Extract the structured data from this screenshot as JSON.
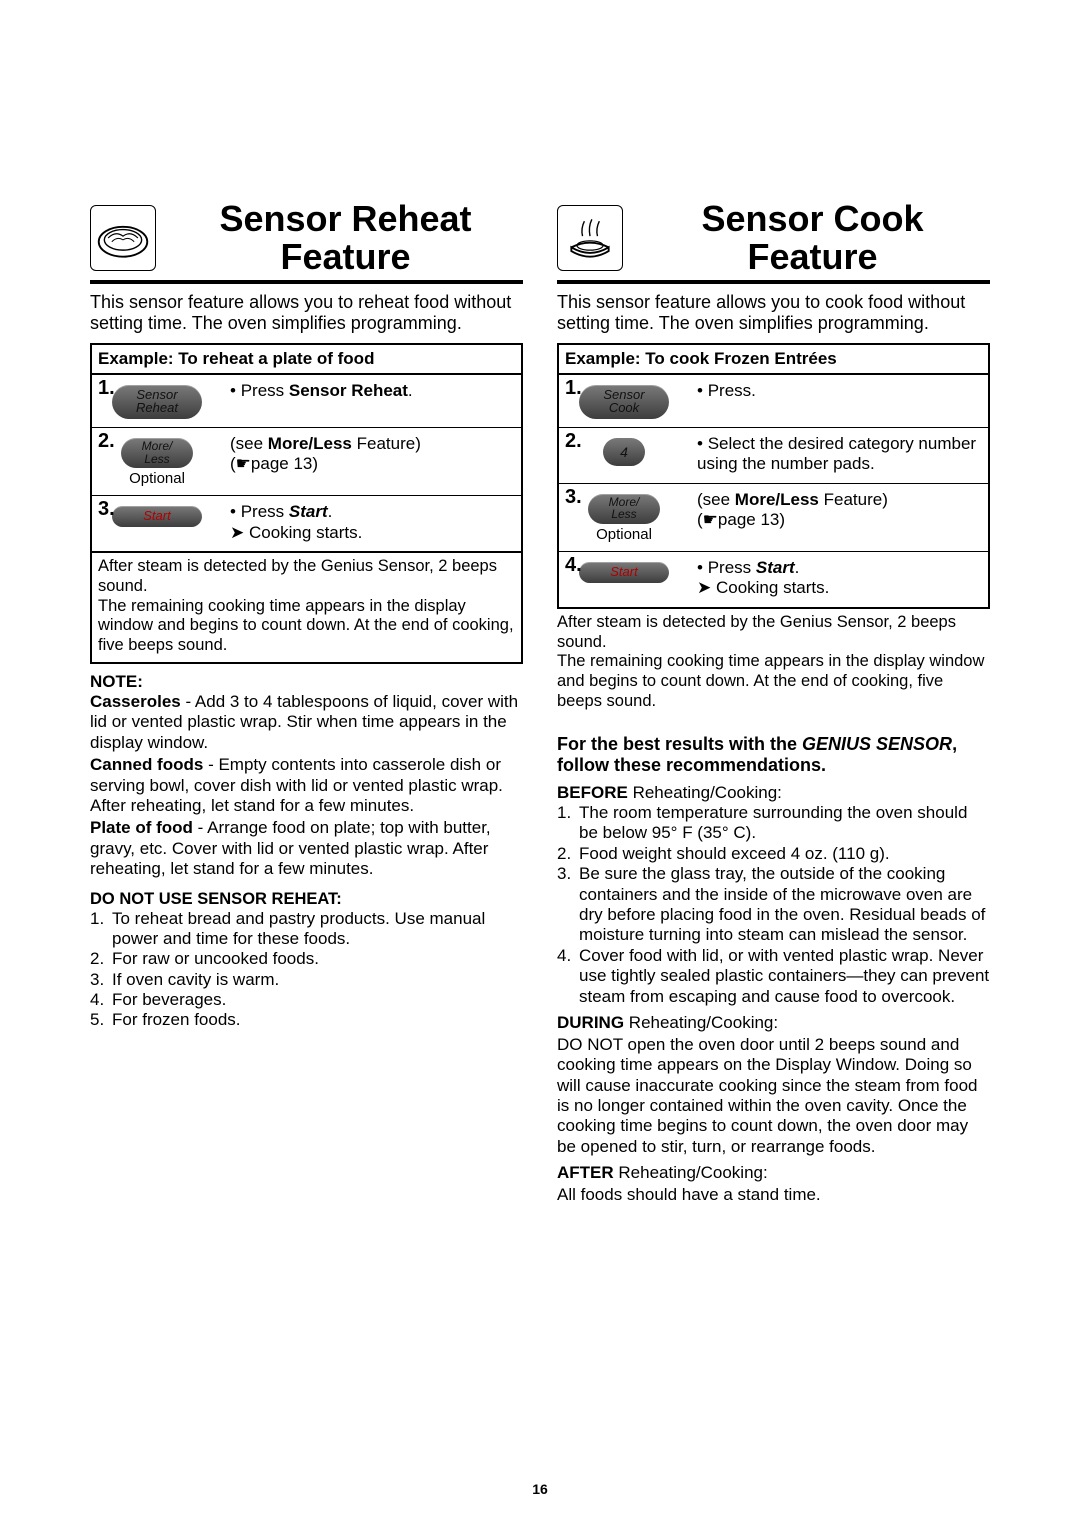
{
  "pageNumber": "16",
  "left": {
    "title": "Sensor Reheat Feature",
    "intro": "This sensor feature allows you to reheat food without setting time. The oven simplifies programming.",
    "exampleTitle": "Example: To reheat a plate of food",
    "steps": [
      {
        "num": "1.",
        "btnLabel": "Sensor\nReheat",
        "btnClass": "mw-btn",
        "optional": "",
        "right_html": "<span class='bullet'>Press <b>Sensor Reheat</b>.</span>"
      },
      {
        "num": "2.",
        "btnLabel": "More/\nLess",
        "btnClass": "mw-btn small",
        "optional": "Optional",
        "right_html": "(see <b>More/Less</b> Feature)<br><span class='pageref'>page 13</span>"
      },
      {
        "num": "3.",
        "btnLabel": "Start",
        "btnClass": "mw-btn red",
        "optional": "",
        "right_html": "<span class='bullet'>Press <b><i>Start</i></b>.</span><br><span class='arrowline'>Cooking starts.</span>"
      }
    ],
    "after": "After steam is detected by the Genius Sensor, 2 beeps sound.\nThe remaining cooking time appears in the display window and begins to count down. At the end of cooking, five beeps sound.",
    "noteHead": "NOTE:",
    "notes": [
      {
        "lead": "Casseroles",
        "text": " - Add 3 to 4 tablespoons of liquid, cover with lid or vented plastic wrap. Stir when time appears in the display window."
      },
      {
        "lead": "Canned foods",
        "text": " - Empty contents into casserole dish or serving bowl, cover dish with lid or vented plastic wrap. After reheating, let stand for a few minutes."
      },
      {
        "lead": "Plate of food",
        "text": " - Arrange food on plate; top with butter, gravy, etc. Cover with lid or vented plastic wrap. After reheating, let stand for a few minutes."
      }
    ],
    "warnHead": "DO NOT USE SENSOR REHEAT:",
    "warnItems": [
      "To reheat bread and pastry products. Use manual power and time for these foods.",
      "For raw or uncooked foods.",
      "If oven cavity is warm.",
      "For beverages.",
      "For frozen foods."
    ]
  },
  "right": {
    "title": "Sensor Cook Feature",
    "intro": "This sensor feature allows you to cook food without setting time. The oven simplifies programming.",
    "exampleTitle": "Example: To cook Frozen Entrées",
    "steps": [
      {
        "num": "1.",
        "btnLabel": "Sensor\nCook",
        "btnClass": "mw-btn",
        "optional": "",
        "right_html": "<span class='bullet'>Press.</span>"
      },
      {
        "num": "2.",
        "btnLabel": "4",
        "btnClass": "mw-num",
        "optional": "",
        "right_html": "<span class='bullet'>Select the desired category number using the number pads.</span>"
      },
      {
        "num": "3.",
        "btnLabel": "More/\nLess",
        "btnClass": "mw-btn small",
        "optional": "Optional",
        "right_html": "(see <b>More/Less</b> Feature)<br><span class='pageref'>page 13</span>"
      },
      {
        "num": "4.",
        "btnLabel": "Start",
        "btnClass": "mw-btn red",
        "optional": "",
        "right_html": "<span class='bullet'>Press <b><i>Start</i></b>.</span><br><span class='arrowline'>Cooking starts.</span>"
      }
    ],
    "after": "After steam is detected by the Genius Sensor, 2 beeps sound.\nThe remaining cooking time appears in the display window and begins to count down. At the end of cooking, five beeps sound.",
    "bestHeadA": "For the best results with the ",
    "bestHeadB": "GENIUS SENSOR",
    "bestHeadC": ", follow these recommendations.",
    "beforeLead": "BEFORE",
    "beforeTail": " Reheating/Cooking:",
    "beforeItems": [
      "The room temperature surrounding the oven should be below 95° F (35° C).",
      "Food weight should exceed 4 oz. (110 g).",
      "Be sure the glass tray, the outside of the cooking containers and the inside of the microwave oven are dry before placing food in the oven. Residual beads of moisture turning into steam can mislead the sensor.",
      "Cover food with lid, or with vented plastic wrap. Never use tightly sealed plastic containers—they can prevent steam from escaping and cause food to overcook."
    ],
    "duringLead": "DURING",
    "duringTail": " Reheating/Cooking:",
    "duringText": "DO NOT open the oven door until 2 beeps sound and cooking time appears on the Display Window.  Doing so will cause inaccurate cooking since the steam from food is no longer contained within the oven cavity. Once the cooking time begins to count down, the oven door may be opened to stir, turn, or rearrange foods.",
    "afterLead": "AFTER",
    "afterTail": " Reheating/Cooking:",
    "afterText": "All foods should have a stand time."
  }
}
